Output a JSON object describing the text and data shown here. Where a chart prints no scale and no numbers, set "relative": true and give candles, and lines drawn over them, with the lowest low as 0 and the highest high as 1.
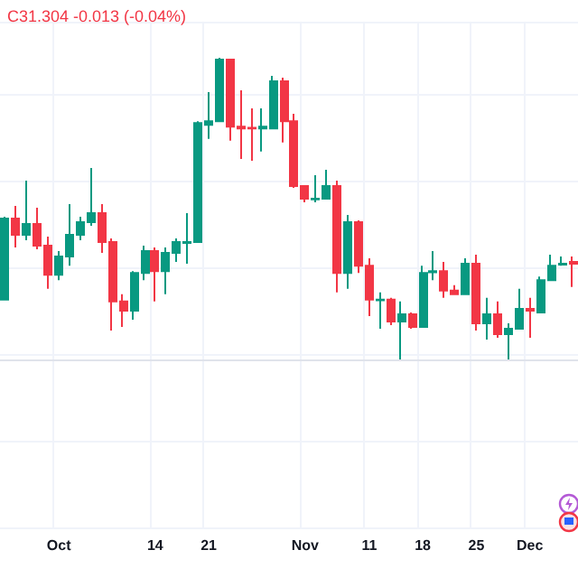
{
  "chart_data": {
    "type": "candlestick",
    "relative": true,
    "grid": true,
    "annotations": [
      "C31.304 -0.013 (-0.04%)"
    ],
    "categories": [
      null,
      null,
      null,
      null,
      null,
      "Oct",
      null,
      null,
      null,
      null,
      null,
      null,
      null,
      null,
      "14",
      null,
      null,
      null,
      null,
      "21",
      null,
      null,
      null,
      null,
      null,
      null,
      null,
      null,
      "Nov",
      null,
      null,
      null,
      null,
      null,
      "11",
      null,
      null,
      null,
      null,
      "18",
      null,
      null,
      null,
      null,
      "25",
      null,
      null,
      null,
      null,
      "Dec",
      null,
      null,
      null,
      null
    ],
    "ohlc": [
      [
        0.198,
        0.473,
        0.198,
        0.467
      ],
      [
        0.467,
        0.509,
        0.371,
        0.413
      ],
      [
        0.413,
        0.593,
        0.395,
        0.449
      ],
      [
        0.449,
        0.503,
        0.365,
        0.377
      ],
      [
        0.377,
        0.407,
        0.234,
        0.281
      ],
      [
        0.281,
        0.359,
        0.263,
        0.341
      ],
      [
        0.341,
        0.515,
        0.311,
        0.413
      ],
      [
        0.413,
        0.473,
        0.395,
        0.455
      ],
      [
        0.455,
        0.635,
        0.443,
        0.485
      ],
      [
        0.485,
        0.515,
        0.353,
        0.389
      ],
      [
        0.389,
        0.401,
        0.096,
        0.192
      ],
      [
        0.192,
        0.216,
        0.108,
        0.162
      ],
      [
        0.162,
        0.293,
        0.132,
        0.287
      ],
      [
        0.287,
        0.377,
        0.263,
        0.359
      ],
      [
        0.359,
        0.371,
        0.192,
        0.293
      ],
      [
        0.293,
        0.371,
        0.216,
        0.353
      ],
      [
        0.353,
        0.401,
        0.323,
        0.389
      ],
      [
        0.386,
        0.485,
        0.317,
        0.389
      ],
      [
        0.389,
        0.79,
        0.389,
        0.784
      ],
      [
        0.778,
        0.886,
        0.731,
        0.79
      ],
      [
        0.79,
        1,
        0.79,
        0.994
      ],
      [
        0.994,
        0.994,
        0.725,
        0.772
      ],
      [
        0.772,
        0.892,
        0.665,
        0.766
      ],
      [
        0.768,
        0.832,
        0.659,
        0.766
      ],
      [
        0.766,
        0.832,
        0.689,
        0.772
      ],
      [
        0.766,
        0.94,
        0.766,
        0.922
      ],
      [
        0.922,
        0.934,
        0.719,
        0.79
      ],
      [
        0.79,
        0.814,
        0.569,
        0.575
      ],
      [
        0.575,
        0.575,
        0.521,
        0.533
      ],
      [
        0.531,
        0.611,
        0.521,
        0.533
      ],
      [
        0.533,
        0.629,
        0.533,
        0.575
      ],
      [
        0.575,
        0.593,
        0.222,
        0.287
      ],
      [
        0.287,
        0.479,
        0.234,
        0.455
      ],
      [
        0.455,
        0.461,
        0.287,
        0.311
      ],
      [
        0.311,
        0.335,
        0.144,
        0.198
      ],
      [
        0.196,
        0.222,
        0.102,
        0.198
      ],
      [
        0.198,
        0.204,
        0.114,
        0.126
      ],
      [
        0.126,
        0.192,
        0,
        0.15
      ],
      [
        0.15,
        0.156,
        0.102,
        0.108
      ],
      [
        0.108,
        0.311,
        0.108,
        0.287
      ],
      [
        0.289,
        0.359,
        0.263,
        0.293
      ],
      [
        0.293,
        0.323,
        0.204,
        0.228
      ],
      [
        0.228,
        0.246,
        0.216,
        0.216
      ],
      [
        0.216,
        0.335,
        0.216,
        0.317
      ],
      [
        0.317,
        0.347,
        0.096,
        0.12
      ],
      [
        0.12,
        0.204,
        0.066,
        0.15
      ],
      [
        0.15,
        0.192,
        0.072,
        0.084
      ],
      [
        0.084,
        0.12,
        0,
        0.102
      ],
      [
        0.102,
        0.234,
        0.102,
        0.168
      ],
      [
        0.168,
        0.204,
        0.072,
        0.162
      ],
      [
        0.156,
        0.275,
        0.156,
        0.263
      ],
      [
        0.263,
        0.347,
        0.263,
        0.311
      ],
      [
        0.314,
        0.341,
        0.311,
        0.317
      ],
      [
        0.323,
        0.341,
        0.24,
        0.317
      ]
    ],
    "colors": [
      "#089981",
      "#f23645",
      "#089981",
      "#f23645",
      "#f23645",
      "#089981",
      "#089981",
      "#089981",
      "#089981",
      "#f23645",
      "#f23645",
      "#f23645",
      "#089981",
      "#089981",
      "#f23645",
      "#089981",
      "#089981",
      "#089981",
      "#089981",
      "#089981",
      "#089981",
      "#f23645",
      "#f23645",
      "#f23645",
      "#089981",
      "#089981",
      "#f23645",
      "#f23645",
      "#f23645",
      "#089981",
      "#089981",
      "#f23645",
      "#089981",
      "#f23645",
      "#f23645",
      "#089981",
      "#f23645",
      "#089981",
      "#f23645",
      "#089981",
      "#089981",
      "#f23645",
      "#f23645",
      "#089981",
      "#f23645",
      "#089981",
      "#f23645",
      "#089981",
      "#089981",
      "#f23645",
      "#089981",
      "#089981",
      "#089981",
      "#f23645"
    ]
  }
}
